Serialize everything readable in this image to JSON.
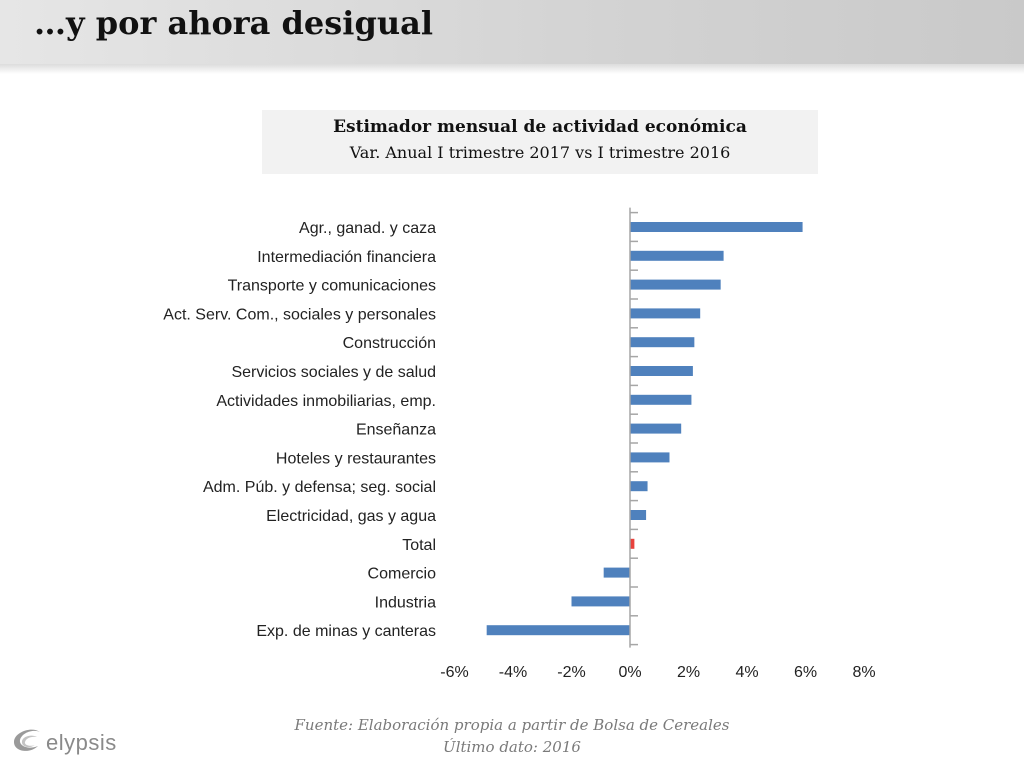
{
  "slide": {
    "title": "…y por ahora desigual"
  },
  "chart_data": {
    "type": "bar",
    "orientation": "horizontal",
    "title": "Estimador mensual de actividad económica",
    "subtitle": "Var. Anual I trimestre 2017 vs I trimestre 2016",
    "categories": [
      "Agr., ganad. y caza",
      "Intermediación financiera",
      "Transporte y comunicaciones",
      "Act. Serv. Com., sociales y personales",
      "Construcción",
      "Servicios sociales y de salud",
      "Actividades inmobiliarias, emp.",
      "Enseñanza",
      "Hoteles y restaurantes",
      "Adm. Púb. y defensa; seg. social",
      "Electricidad, gas y agua",
      "Total",
      "Comercio",
      "Industria",
      "Exp. de minas y canteras"
    ],
    "values": [
      5.9,
      3.2,
      3.1,
      2.4,
      2.2,
      2.15,
      2.1,
      1.75,
      1.35,
      0.6,
      0.55,
      0.15,
      -0.9,
      -2.0,
      -4.9
    ],
    "bar_colors": [
      "#4f81bd",
      "#4f81bd",
      "#4f81bd",
      "#4f81bd",
      "#4f81bd",
      "#4f81bd",
      "#4f81bd",
      "#4f81bd",
      "#4f81bd",
      "#4f81bd",
      "#4f81bd",
      "#e8423c",
      "#4f81bd",
      "#4f81bd",
      "#4f81bd"
    ],
    "xlim": [
      -6,
      8
    ],
    "xticks": [
      -6,
      -4,
      -2,
      0,
      2,
      4,
      6,
      8
    ],
    "xtick_labels": [
      "-6%",
      "-4%",
      "-2%",
      "0%",
      "2%",
      "4%",
      "6%",
      "8%"
    ],
    "xlabel": "",
    "ylabel": "",
    "grid": false,
    "legend": "none"
  },
  "footer": {
    "source": "Fuente: Elaboración propia a partir de Bolsa de Cereales",
    "last_data": "Último dato: 2016",
    "logo_text": "elypsis"
  },
  "colors": {
    "bar": "#4f81bd",
    "highlight": "#e8423c",
    "axis": "#a6a6a6"
  }
}
